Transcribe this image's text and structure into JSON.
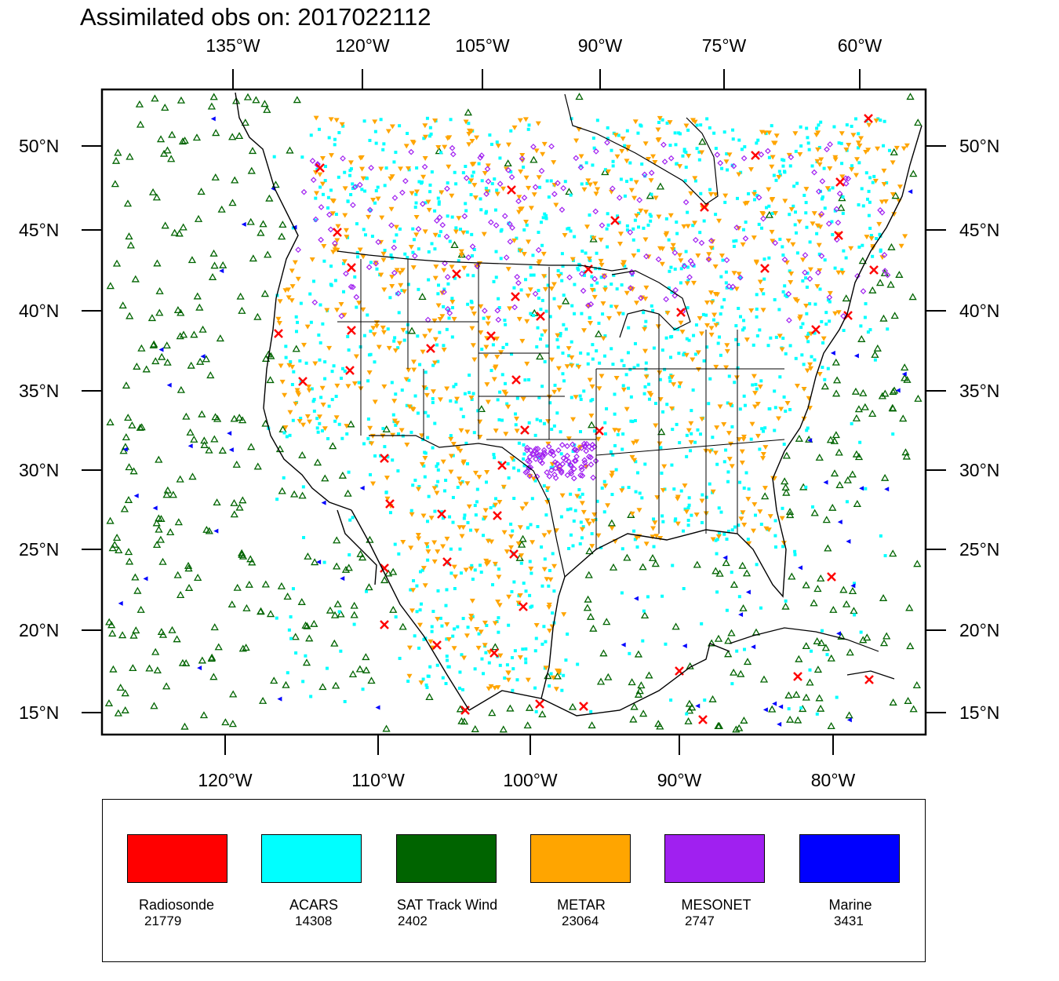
{
  "title": "Assimilated obs on: 2017022112",
  "map": {
    "top_lon_labels": [
      "135°W",
      "120°W",
      "105°W",
      "90°W",
      "75°W",
      "60°W"
    ],
    "bottom_lon_labels": [
      "120°W",
      "110°W",
      "100°W",
      "90°W",
      "80°W"
    ],
    "lat_labels": [
      "50°N",
      "45°N",
      "40°N",
      "35°N",
      "30°N",
      "25°N",
      "20°N",
      "15°N"
    ]
  },
  "legend": [
    {
      "label": "Radiosonde",
      "count": "21779",
      "color": "#ff0000"
    },
    {
      "label": "ACARS",
      "count": "14308",
      "color": "#00ffff"
    },
    {
      "label": "SAT Track Wind",
      "count": "2402",
      "color": "#006400"
    },
    {
      "label": "METAR",
      "count": "23064",
      "color": "#ffa500"
    },
    {
      "label": "MESONET",
      "count": "2747",
      "color": "#a020f0"
    },
    {
      "label": "Marine",
      "count": "3431",
      "color": "#0000ff"
    }
  ],
  "colors": {
    "radiosonde": "#ff0000",
    "acars": "#00ffff",
    "sat": "#006400",
    "metar": "#ffa500",
    "mesonet": "#a020f0",
    "marine": "#0000ff"
  }
}
